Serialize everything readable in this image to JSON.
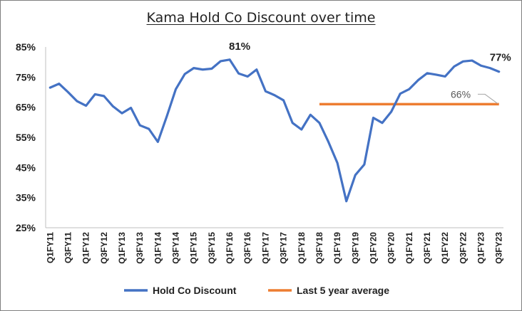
{
  "chart_data": {
    "type": "line",
    "title": "Kama Hold Co Discount over time",
    "ylim": [
      25,
      85
    ],
    "y_ticks": [
      "85%",
      "75%",
      "65%",
      "55%",
      "45%",
      "35%",
      "25%"
    ],
    "y_tick_values": [
      85,
      75,
      65,
      55,
      45,
      35,
      25
    ],
    "x_tick_labels": [
      "Q1FY11",
      "Q3FY11",
      "Q1FY12",
      "Q3FY12",
      "Q1FY13",
      "Q3FY13",
      "Q1FY14",
      "Q3FY14",
      "Q1FY15",
      "Q3FY15",
      "Q1FY16",
      "Q3FY16",
      "Q1FY17",
      "Q3FY17",
      "Q1FY18",
      "Q3FY18",
      "Q1FY19",
      "Q3FY19",
      "Q1FY20",
      "Q3FY20",
      "Q1FY21",
      "Q3FY21",
      "Q1FY22",
      "Q3FY22",
      "Q1FY23",
      "Q3FY23"
    ],
    "x": [
      "Q1FY11",
      "Q2FY11",
      "Q3FY11",
      "Q4FY11",
      "Q1FY12",
      "Q2FY12",
      "Q3FY12",
      "Q4FY12",
      "Q1FY13",
      "Q2FY13",
      "Q3FY13",
      "Q4FY13",
      "Q1FY14",
      "Q2FY14",
      "Q3FY14",
      "Q4FY14",
      "Q1FY15",
      "Q2FY15",
      "Q3FY15",
      "Q4FY15",
      "Q1FY16",
      "Q2FY16",
      "Q3FY16",
      "Q4FY16",
      "Q1FY17",
      "Q2FY17",
      "Q3FY17",
      "Q4FY17",
      "Q1FY18",
      "Q2FY18",
      "Q3FY18",
      "Q4FY18",
      "Q1FY19",
      "Q2FY19",
      "Q3FY19",
      "Q4FY19",
      "Q1FY20",
      "Q2FY20",
      "Q3FY20",
      "Q4FY20",
      "Q1FY21",
      "Q2FY21",
      "Q3FY21",
      "Q4FY21",
      "Q1FY22",
      "Q2FY22",
      "Q3FY22",
      "Q4FY22",
      "Q1FY23",
      "Q2FY23",
      "Q3FY23"
    ],
    "series": [
      {
        "name": "Hold Co Discount",
        "color": "#4472c4",
        "values": [
          71.5,
          72.8,
          70.0,
          67.0,
          65.5,
          69.3,
          68.7,
          65.3,
          63.0,
          64.8,
          59.0,
          57.8,
          53.5,
          62.0,
          71.0,
          76.0,
          78.0,
          77.5,
          77.8,
          80.3,
          80.8,
          76.2,
          75.2,
          77.5,
          70.3,
          69.0,
          67.3,
          59.8,
          57.6,
          62.5,
          59.8,
          53.5,
          46.5,
          33.8,
          42.5,
          46.0,
          61.5,
          59.8,
          63.5,
          69.5,
          71.0,
          74.0,
          76.3,
          75.8,
          75.2,
          78.5,
          80.2,
          80.5,
          78.8,
          78.0,
          76.8
        ]
      },
      {
        "name": "Last 5 year average",
        "color": "#ed7d31",
        "value": 66,
        "x_start": "Q3FY18",
        "x_end": "Q3FY23"
      }
    ],
    "annotations": [
      {
        "text": "81%",
        "x": "Q1FY16",
        "y": 80.8
      },
      {
        "text": "77%",
        "x": "Q3FY23",
        "y": 76.8
      },
      {
        "text": "66%",
        "x": "Q3FY23",
        "y": 66
      }
    ],
    "grid": false,
    "legend_position": "bottom"
  }
}
